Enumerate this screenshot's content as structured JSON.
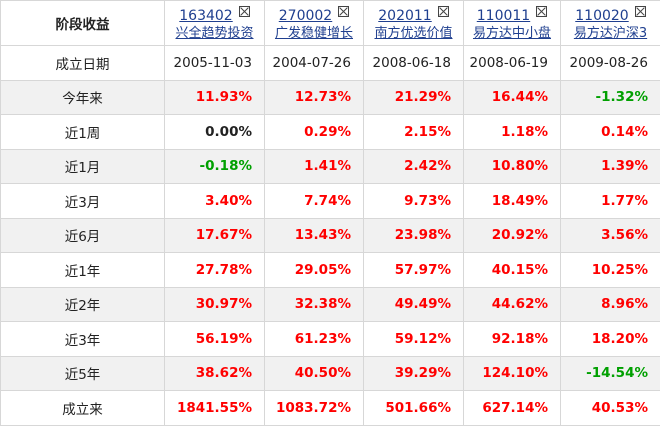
{
  "header": {
    "corner": "阶段收益",
    "funds": [
      {
        "code": "163402",
        "name": "兴全趋势投资"
      },
      {
        "code": "270002",
        "name": "广发稳健增长"
      },
      {
        "code": "202011",
        "name": "南方优选价值"
      },
      {
        "code": "110011",
        "name": "易方达中小盘"
      },
      {
        "code": "110020",
        "name": "易方达沪深3"
      }
    ]
  },
  "rows": [
    {
      "label": "成立日期",
      "kind": "date",
      "values": [
        "2005-11-03",
        "2004-07-26",
        "2008-06-18",
        "2008-06-19",
        "2009-08-26"
      ]
    },
    {
      "label": "今年来",
      "values": [
        "11.93%",
        "12.73%",
        "21.29%",
        "16.44%",
        "-1.32%"
      ]
    },
    {
      "label": "近1周",
      "values": [
        "0.00%",
        "0.29%",
        "2.15%",
        "1.18%",
        "0.14%"
      ]
    },
    {
      "label": "近1月",
      "values": [
        "-0.18%",
        "1.41%",
        "2.42%",
        "10.80%",
        "1.39%"
      ]
    },
    {
      "label": "近3月",
      "values": [
        "3.40%",
        "7.74%",
        "9.73%",
        "18.49%",
        "1.77%"
      ]
    },
    {
      "label": "近6月",
      "values": [
        "17.67%",
        "13.43%",
        "23.98%",
        "20.92%",
        "3.56%"
      ]
    },
    {
      "label": "近1年",
      "values": [
        "27.78%",
        "29.05%",
        "57.97%",
        "40.15%",
        "10.25%"
      ]
    },
    {
      "label": "近2年",
      "values": [
        "30.97%",
        "32.38%",
        "49.49%",
        "44.62%",
        "8.96%"
      ]
    },
    {
      "label": "近3年",
      "values": [
        "56.19%",
        "61.23%",
        "59.12%",
        "92.18%",
        "18.20%"
      ]
    },
    {
      "label": "近5年",
      "values": [
        "38.62%",
        "40.50%",
        "39.29%",
        "124.10%",
        "-14.54%"
      ]
    },
    {
      "label": "成立来",
      "values": [
        "1841.55%",
        "1083.72%",
        "501.66%",
        "627.14%",
        "40.53%"
      ]
    }
  ],
  "colors": {
    "positive": "#ff0000",
    "negative": "#00a000",
    "neutral": "#222222",
    "link": "#1f3f8f",
    "stripe": "#f1f1f1"
  }
}
